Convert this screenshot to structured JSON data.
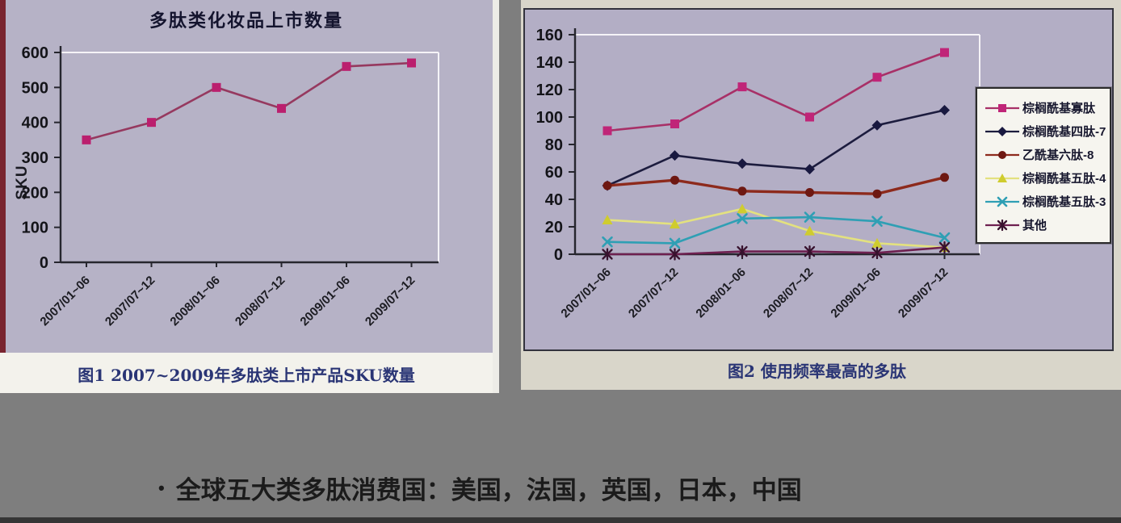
{
  "page": {
    "background_color": "#7e7e7e",
    "bullet_marker": "•",
    "bullet_text": "全球五大类多肽消费国：美国，法国，英国，日本，中国"
  },
  "figure1": {
    "title": "多肽类化妆品上市数量",
    "ylabel": "SKU",
    "caption": "图1 2007~2009年多肽类上市产品SKU数量",
    "accent_strip_color": "#79242f",
    "panel_color": "#b6b2c6"
  },
  "figure2": {
    "caption": "图2 使用频率最高的多肽",
    "panel_color": "#d9d6ca",
    "plot_background": "#b3aec5"
  },
  "chart_data": [
    {
      "type": "line",
      "title": "多肽类化妆品上市数量",
      "xlabel": "",
      "ylabel": "SKU",
      "ylim": [
        0,
        600
      ],
      "ytick_step": 100,
      "grid": false,
      "legend": false,
      "categories": [
        "2007/01~06",
        "2007/07~12",
        "2008/01~06",
        "2008/07~12",
        "2009/01~06",
        "2009/07~12"
      ],
      "series": [
        {
          "name": "SKU",
          "values": [
            350,
            400,
            500,
            440,
            560,
            570
          ],
          "color": "#bb1f6e",
          "line_color": "#96395f",
          "marker": "square"
        }
      ]
    },
    {
      "type": "line",
      "title": "",
      "xlabel": "",
      "ylabel": "",
      "ylim": [
        0,
        160
      ],
      "ytick_step": 20,
      "grid": false,
      "legend": true,
      "legend_position": "right",
      "categories": [
        "2007/01~06",
        "2007/07~12",
        "2008/01~06",
        "2008/07~12",
        "2009/01~06",
        "2009/07~12"
      ],
      "series": [
        {
          "name": "棕榈酰基寡肽",
          "values": [
            90,
            95,
            122,
            100,
            129,
            147
          ],
          "color": "#c02578",
          "line_color": "#a83067",
          "marker": "square"
        },
        {
          "name": "棕榈酰基四肽-7",
          "values": [
            50,
            72,
            66,
            62,
            94,
            105
          ],
          "color": "#191940",
          "line_color": "#1c1c3e",
          "marker": "diamond"
        },
        {
          "name": "乙酰基六肽-8",
          "values": [
            50,
            54,
            46,
            45,
            44,
            56
          ],
          "color": "#6e1812",
          "line_color": "#8d2a1c",
          "marker": "circle",
          "width": 3.4
        },
        {
          "name": "棕榈酰基五肽-4",
          "values": [
            25,
            22,
            33,
            17,
            8,
            5
          ],
          "color": "#cfcc2e",
          "line_color": "#e3e17f",
          "marker": "triangle"
        },
        {
          "name": "棕榈酰基五肽-3",
          "values": [
            9,
            8,
            26,
            27,
            24,
            12
          ],
          "color": "#2f9fb4",
          "line_color": "#2f9fb4",
          "marker": "x"
        },
        {
          "name": "其他",
          "values": [
            0,
            0,
            2,
            2,
            1,
            5
          ],
          "color": "#38122e",
          "line_color": "#6e2050",
          "marker": "asterisk"
        }
      ]
    }
  ]
}
